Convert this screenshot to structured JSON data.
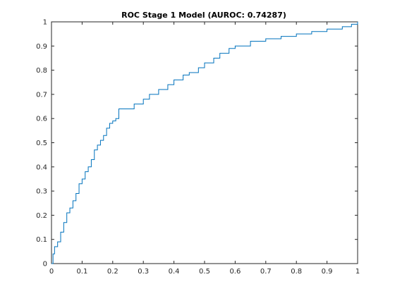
{
  "colors": {
    "line": "#0072bd",
    "axes": "#262626",
    "background": "#ffffff"
  },
  "chart_data": {
    "type": "line",
    "title": "ROC Stage 1 Model (AUROC: 0.74287)",
    "xlabel": "",
    "ylabel": "",
    "xlim": [
      0,
      1
    ],
    "ylim": [
      0,
      1
    ],
    "grid": false,
    "legend": "none",
    "x_ticks": [
      0,
      0.1,
      0.2,
      0.3,
      0.4,
      0.5,
      0.6,
      0.7,
      0.8,
      0.9,
      1
    ],
    "y_ticks": [
      0,
      0.1,
      0.2,
      0.3,
      0.4,
      0.5,
      0.6,
      0.7,
      0.8,
      0.9,
      1
    ],
    "x_tick_labels": [
      "0",
      "0.1",
      "0.2",
      "0.3",
      "0.4",
      "0.5",
      "0.6",
      "0.7",
      "0.8",
      "0.9",
      "1"
    ],
    "y_tick_labels": [
      "0",
      "0.1",
      "0.2",
      "0.3",
      "0.4",
      "0.5",
      "0.6",
      "0.7",
      "0.8",
      "0.9",
      "1"
    ],
    "series": [
      {
        "style": "step",
        "x": [
          0,
          0.005,
          0.01,
          0.02,
          0.03,
          0.04,
          0.05,
          0.06,
          0.07,
          0.08,
          0.09,
          0.1,
          0.11,
          0.12,
          0.13,
          0.14,
          0.15,
          0.16,
          0.17,
          0.18,
          0.19,
          0.2,
          0.21,
          0.22,
          0.25,
          0.27,
          0.3,
          0.32,
          0.35,
          0.38,
          0.4,
          0.43,
          0.45,
          0.48,
          0.5,
          0.53,
          0.55,
          0.58,
          0.6,
          0.65,
          0.7,
          0.75,
          0.8,
          0.85,
          0.9,
          0.95,
          0.98,
          1.0
        ],
        "y": [
          0,
          0.04,
          0.07,
          0.09,
          0.13,
          0.17,
          0.21,
          0.23,
          0.26,
          0.29,
          0.33,
          0.35,
          0.38,
          0.4,
          0.43,
          0.47,
          0.49,
          0.51,
          0.53,
          0.56,
          0.58,
          0.59,
          0.6,
          0.64,
          0.64,
          0.66,
          0.68,
          0.7,
          0.72,
          0.74,
          0.76,
          0.78,
          0.79,
          0.81,
          0.83,
          0.85,
          0.87,
          0.89,
          0.9,
          0.92,
          0.93,
          0.94,
          0.95,
          0.96,
          0.97,
          0.98,
          0.99,
          1.0
        ]
      }
    ]
  }
}
